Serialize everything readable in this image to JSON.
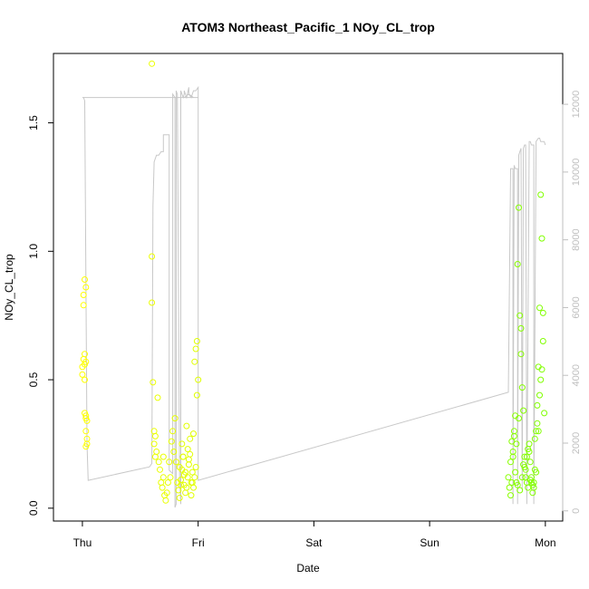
{
  "chart_data": {
    "type": "scatter",
    "title": "ATOM3 Northeast_Pacific_1 NOy_CL_trop",
    "xlabel": "Date",
    "ylabel": "NOy_CL_trop",
    "x_ticks": [
      "Thu",
      "Fri",
      "Sat",
      "Sun",
      "Mon"
    ],
    "x_range_days": [
      -0.25,
      4.15
    ],
    "y_ticks": [
      "0.0",
      "0.5",
      "1.0",
      "1.5"
    ],
    "ylim": [
      -0.05,
      1.77
    ],
    "y2_ticks": [
      "0",
      "2000",
      "4000",
      "6000",
      "8000",
      "10000",
      "12000"
    ],
    "ylim2": [
      -300,
      13500
    ],
    "grid": false,
    "point_color_range": [
      "#ffff00",
      "#7fff00"
    ],
    "series": [
      {
        "kind": "points",
        "x": [
          0.0,
          0.0,
          0.01,
          0.02,
          0.01,
          0.03,
          0.02,
          0.01,
          0.03,
          0.02,
          0.04,
          0.03,
          0.04,
          0.03,
          0.02,
          0.03,
          0.04,
          0.03,
          0.02,
          0.6,
          0.6,
          0.61,
          0.62,
          0.62,
          0.63,
          0.64,
          0.63,
          0.65,
          0.66,
          0.67,
          0.68,
          0.69,
          0.7,
          0.7,
          0.71,
          0.72,
          0.73,
          0.74,
          0.75,
          0.76,
          0.77,
          0.78,
          0.79,
          0.8,
          0.81,
          0.82,
          0.83,
          0.84,
          0.85,
          0.86,
          0.87,
          0.88,
          0.89,
          0.9,
          0.91,
          0.92,
          0.93,
          0.94,
          0.95,
          0.96,
          0.97,
          0.98,
          0.99,
          1.0,
          0.99,
          0.98,
          0.97,
          0.96,
          0.95,
          0.94,
          0.93,
          0.92,
          0.91,
          0.9,
          0.89,
          0.88,
          0.87,
          0.86,
          0.85,
          0.84,
          3.68,
          3.69,
          3.7,
          3.71,
          3.72,
          3.73,
          3.74,
          3.75,
          3.76,
          3.77,
          3.78,
          3.79,
          3.8,
          3.81,
          3.82,
          3.83,
          3.84,
          3.85,
          3.86,
          3.87,
          3.88,
          3.89,
          3.9,
          3.91,
          3.92,
          3.93,
          3.94,
          3.95,
          3.96,
          3.97,
          3.98,
          3.99,
          3.7,
          3.72,
          3.74,
          3.75,
          3.76,
          3.78,
          3.8,
          3.82,
          3.84,
          3.86,
          3.88,
          3.9,
          3.92,
          3.94,
          3.96,
          3.98,
          3.71,
          3.73,
          3.77,
          3.79,
          3.81,
          3.83,
          3.85,
          3.87,
          3.89,
          3.91,
          3.93,
          3.95,
          3.97
        ],
        "y": [
          0.52,
          0.55,
          0.58,
          0.6,
          0.83,
          0.86,
          0.89,
          0.79,
          0.36,
          0.37,
          0.34,
          0.3,
          0.27,
          0.24,
          0.5,
          0.57,
          0.25,
          0.35,
          0.56,
          0.98,
          0.8,
          0.49,
          0.3,
          0.25,
          0.28,
          0.22,
          0.2,
          0.43,
          0.18,
          0.15,
          0.1,
          0.08,
          0.12,
          0.2,
          0.05,
          0.03,
          0.06,
          0.1,
          0.18,
          0.12,
          0.26,
          0.3,
          0.22,
          0.35,
          0.18,
          0.1,
          0.07,
          0.04,
          0.09,
          0.15,
          0.2,
          0.13,
          0.06,
          0.08,
          0.12,
          0.17,
          0.21,
          0.1,
          0.14,
          0.29,
          0.57,
          0.62,
          0.65,
          0.5,
          0.44,
          0.16,
          0.12,
          0.08,
          0.1,
          0.05,
          0.27,
          0.19,
          0.23,
          0.32,
          0.14,
          0.09,
          0.2,
          0.25,
          0.11,
          0.16,
          0.12,
          0.08,
          0.05,
          0.1,
          0.2,
          0.3,
          0.36,
          0.25,
          0.95,
          1.17,
          0.75,
          0.7,
          0.47,
          0.38,
          0.2,
          0.15,
          0.1,
          0.08,
          0.22,
          0.18,
          0.12,
          0.06,
          0.1,
          0.15,
          0.3,
          0.4,
          0.55,
          0.78,
          1.22,
          1.05,
          0.65,
          0.37,
          0.18,
          0.22,
          0.14,
          0.1,
          0.09,
          0.07,
          0.12,
          0.16,
          0.2,
          0.25,
          0.1,
          0.08,
          0.14,
          0.3,
          0.5,
          0.76,
          0.26,
          0.28,
          0.35,
          0.6,
          0.17,
          0.12,
          0.23,
          0.11,
          0.09,
          0.27,
          0.33,
          0.44,
          0.54
        ],
        "x_outlier": [
          0.6
        ],
        "y_outlier": [
          1.73
        ]
      },
      {
        "kind": "line",
        "axis": "right",
        "x": [
          0.0,
          0.01,
          0.02,
          0.04,
          0.05,
          0.58,
          0.6,
          0.6,
          0.61,
          0.62,
          0.63,
          0.64,
          0.66,
          0.68,
          0.7,
          0.7,
          0.74,
          0.75,
          0.75,
          0.78,
          0.78,
          0.8,
          0.8,
          0.81,
          0.81,
          0.82,
          0.84,
          0.85,
          0.85,
          0.87,
          0.88,
          0.88,
          0.9,
          0.92,
          0.92,
          0.94,
          0.96,
          0.98,
          1.0,
          1.0,
          0.96,
          0.92,
          0.88,
          0.86,
          0.84,
          0.82,
          0.04,
          0.01,
          0.01,
          0.04,
          0.07,
          1.0,
          1.0,
          3.68,
          3.7,
          3.72,
          3.72,
          3.73,
          3.74,
          3.76,
          3.76,
          3.77,
          3.78,
          3.79,
          3.8,
          3.81,
          3.82,
          3.83,
          3.84,
          3.86,
          3.86,
          3.87,
          3.88,
          3.9,
          3.9,
          3.92,
          3.94,
          3.95,
          3.96,
          3.98,
          3.99,
          4.0,
          4.0
        ],
        "y": [
          12200,
          12200,
          12100,
          2000,
          900,
          1300,
          1400,
          1500,
          9000,
          10300,
          10400,
          10500,
          10500,
          10600,
          10600,
          11100,
          11100,
          11100,
          1200,
          1100,
          12300,
          12200,
          100,
          200,
          12400,
          12300,
          1000,
          200,
          12400,
          12200,
          12300,
          12400,
          12200,
          12500,
          12300,
          12200,
          12400,
          12400,
          12500,
          12200,
          12200,
          12300,
          12200,
          12200,
          12200,
          12200,
          12200,
          12200,
          12200,
          12200,
          12200,
          12200,
          900,
          3500,
          10100,
          10100,
          200,
          10200,
          10100,
          10100,
          200,
          10500,
          10600,
          10700,
          600,
          10700,
          10800,
          10800,
          200,
          10800,
          10900,
          10900,
          10800,
          10800,
          200,
          10900,
          11000,
          11000,
          10900,
          10900,
          10900,
          10800,
          10800
        ]
      }
    ]
  }
}
